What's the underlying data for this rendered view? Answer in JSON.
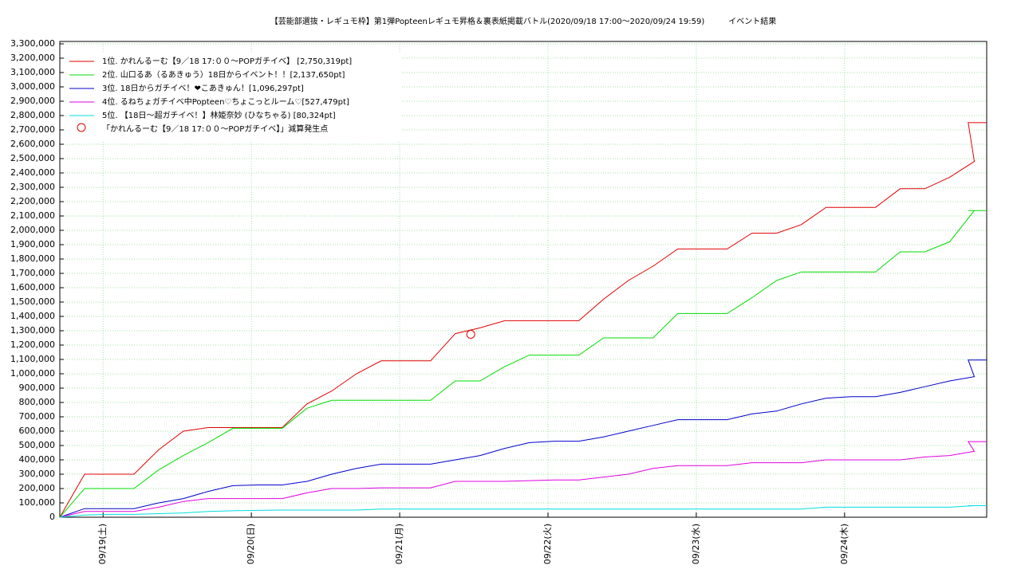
{
  "chart_data": {
    "type": "line",
    "title": "【芸能部選抜・レギュモ枠】第1弾Popteenレギュモ昇格＆裏表紙掲載バトル(2020/09/18 17:00〜2020/09/24 19:59)　　　イベント結果",
    "x": [
      "2020-09-18T17:00",
      "2020-09-18T21:00",
      "2020-09-19T01:00",
      "2020-09-19T05:00",
      "2020-09-19T09:00",
      "2020-09-19T13:00",
      "2020-09-19T17:00",
      "2020-09-19T21:00",
      "2020-09-20T01:00",
      "2020-09-20T05:00",
      "2020-09-20T09:00",
      "2020-09-20T13:00",
      "2020-09-20T17:00",
      "2020-09-20T21:00",
      "2020-09-21T01:00",
      "2020-09-21T05:00",
      "2020-09-21T09:00",
      "2020-09-21T13:00",
      "2020-09-21T17:00",
      "2020-09-21T21:00",
      "2020-09-22T01:00",
      "2020-09-22T05:00",
      "2020-09-22T09:00",
      "2020-09-22T13:00",
      "2020-09-22T17:00",
      "2020-09-22T21:00",
      "2020-09-23T01:00",
      "2020-09-23T05:00",
      "2020-09-23T09:00",
      "2020-09-23T13:00",
      "2020-09-23T17:00",
      "2020-09-23T21:00",
      "2020-09-24T01:00",
      "2020-09-24T05:00",
      "2020-09-24T09:00",
      "2020-09-24T13:00",
      "2020-09-24T17:00",
      "2020-09-24T21:00",
      "2020-09-24T20:00",
      "2020-09-24T23:00"
    ],
    "series": [
      {
        "name": "1位. かれんるーむ【9／18 17:００〜POPガチイベ】 [2,750,319pt]",
        "color": "#e00000",
        "values": [
          0,
          300000,
          300000,
          300000,
          470000,
          600000,
          625000,
          625000,
          625000,
          625000,
          790000,
          880000,
          1000000,
          1090000,
          1090000,
          1090000,
          1280000,
          1320000,
          1370000,
          1370000,
          1370000,
          1370000,
          1520000,
          1650000,
          1750000,
          1870000,
          1870000,
          1870000,
          1980000,
          1980000,
          2040000,
          2160000,
          2160000,
          2160000,
          2290000,
          2290000,
          2370000,
          2480000,
          2750319,
          2750319
        ]
      },
      {
        "name": "2位. 山口るあ（るあきゅう）18日からイベント！！[2,137,650pt]",
        "color": "#00dd00",
        "values": [
          0,
          200000,
          200000,
          200000,
          330000,
          430000,
          520000,
          620000,
          620000,
          620000,
          760000,
          815000,
          815000,
          815000,
          815000,
          815000,
          950000,
          950000,
          1050000,
          1130000,
          1130000,
          1130000,
          1250000,
          1250000,
          1250000,
          1420000,
          1420000,
          1420000,
          1530000,
          1650000,
          1710000,
          1710000,
          1710000,
          1710000,
          1850000,
          1850000,
          1920000,
          2137650,
          2137650,
          2137650
        ]
      },
      {
        "name": "3位. 18日からガチイベ！❤こあきゅん！[1,096,297pt]",
        "color": "#0000cc",
        "values": [
          0,
          60000,
          60000,
          60000,
          100000,
          130000,
          180000,
          220000,
          225000,
          225000,
          250000,
          300000,
          340000,
          370000,
          370000,
          370000,
          400000,
          430000,
          480000,
          520000,
          530000,
          530000,
          560000,
          600000,
          640000,
          680000,
          680000,
          680000,
          720000,
          740000,
          790000,
          830000,
          840000,
          840000,
          870000,
          910000,
          950000,
          980000,
          1096297,
          1096297
        ]
      },
      {
        "name": "4位. るねちょガチイベ中Popteen♡ちょこっとルーム♡[527,479pt]",
        "color": "#e000e0",
        "values": [
          0,
          40000,
          40000,
          40000,
          70000,
          110000,
          130000,
          130000,
          130000,
          130000,
          170000,
          200000,
          200000,
          205000,
          205000,
          205000,
          250000,
          250000,
          250000,
          255000,
          260000,
          260000,
          280000,
          300000,
          340000,
          360000,
          360000,
          360000,
          380000,
          380000,
          380000,
          400000,
          400000,
          400000,
          400000,
          420000,
          430000,
          460000,
          527479,
          527479
        ]
      },
      {
        "name": "5位. 【18日〜超ガチイベ！】林姫奈妙 (ひなちゃる) [80,324pt]",
        "color": "#00dddd",
        "values": [
          0,
          15000,
          20000,
          20000,
          25000,
          30000,
          40000,
          45000,
          48000,
          50000,
          50000,
          50000,
          50000,
          57000,
          57000,
          57000,
          57000,
          57000,
          57000,
          57000,
          57000,
          57000,
          57000,
          57000,
          57000,
          57000,
          57000,
          57000,
          57000,
          57000,
          57000,
          70000,
          70000,
          70000,
          70000,
          70000,
          70000,
          80324,
          80324,
          80324
        ]
      }
    ],
    "annotations": [
      {
        "name": "「かれんるーむ【9／18 17:００〜POPガチイベ】」減算発生点",
        "x": "2020-09-21T11:30",
        "y": 1275000,
        "color": "#e00000"
      }
    ],
    "xlim": [
      "2020-09-18T17:00",
      "2020-09-24T23:00"
    ],
    "xticks": [
      {
        "value": "2020-09-19T00:00",
        "label": "09/19(土)"
      },
      {
        "value": "2020-09-20T00:00",
        "label": "09/20(日)"
      },
      {
        "value": "2020-09-21T00:00",
        "label": "09/21(月)"
      },
      {
        "value": "2020-09-22T00:00",
        "label": "09/22(火)"
      },
      {
        "value": "2020-09-23T00:00",
        "label": "09/23(水)"
      },
      {
        "value": "2020-09-24T00:00",
        "label": "09/24(木)"
      }
    ],
    "ylim": [
      0,
      3300000
    ],
    "yticks": [
      0,
      {
        "value": 100000,
        "label": "100,000"
      },
      {
        "value": 200000,
        "label": "200,000"
      },
      {
        "value": 300000,
        "label": "300,000"
      },
      {
        "value": 400000,
        "label": "400,000"
      },
      {
        "value": 500000,
        "label": "500,000"
      },
      {
        "value": 600000,
        "label": "600,000"
      },
      {
        "value": 700000,
        "label": "700,000"
      },
      {
        "value": 800000,
        "label": "800,000"
      },
      {
        "value": 900000,
        "label": "900,000"
      },
      {
        "value": 1000000,
        "label": "1,000,000"
      },
      {
        "value": 1100000,
        "label": "1,100,000"
      },
      {
        "value": 1200000,
        "label": "1,200,000"
      },
      {
        "value": 1300000,
        "label": "1,300,000"
      },
      {
        "value": 1400000,
        "label": "1,400,000"
      },
      {
        "value": 1500000,
        "label": "1,500,000"
      },
      {
        "value": 1600000,
        "label": "1,600,000"
      },
      {
        "value": 1700000,
        "label": "1,700,000"
      },
      {
        "value": 1800000,
        "label": "1,800,000"
      },
      {
        "value": 1900000,
        "label": "1,900,000"
      },
      {
        "value": 2000000,
        "label": "2,000,000"
      },
      {
        "value": 2100000,
        "label": "2,100,000"
      },
      {
        "value": 2200000,
        "label": "2,200,000"
      },
      {
        "value": 2300000,
        "label": "2,300,000"
      },
      {
        "value": 2400000,
        "label": "2,400,000"
      },
      {
        "value": 2500000,
        "label": "2,500,000"
      },
      {
        "value": 2600000,
        "label": "2,600,000"
      },
      {
        "value": 2700000,
        "label": "2,700,000"
      },
      {
        "value": 2800000,
        "label": "2,800,000"
      },
      {
        "value": 2900000,
        "label": "2,900,000"
      },
      {
        "value": 3000000,
        "label": "3,000,000"
      },
      {
        "value": 3100000,
        "label": "3,100,000"
      },
      {
        "value": 3200000,
        "label": "3,200,000"
      },
      {
        "value": 3300000,
        "label": "3,300,000"
      }
    ],
    "grid": true
  }
}
